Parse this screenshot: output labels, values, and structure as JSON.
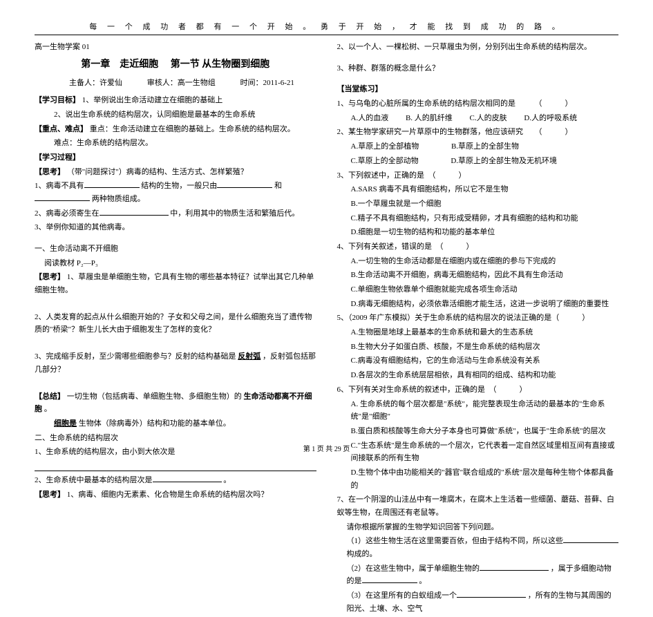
{
  "header_quote": "每 一 个 成 功 者 都 有 一 个 开 始 。 勇 于 开 始 ， 才 能 找 到 成 功 的 路 。",
  "doc_number": "高一生物学案 01",
  "chapter": "第一章　走近细胞　 第一节 从生物圈到细胞",
  "author_label": "主备人：许爱仙",
  "reviewer": "审核人：高一生物组",
  "date": "时间：2011-6-21",
  "goals_label": "【学习目标】",
  "goal1": "1、举例说出生命活动建立在细胞的基础上",
  "goal2": "2、说出生命系统的结构层次，认同细胞是最基本的生命系统",
  "difficulty_label": "【重点、难点】",
  "difficulty_key": "重点：生命活动建立在细胞的基础上。生命系统的结构层次。",
  "difficulty_hard": "难点：生命系统的结构层次。",
  "process_label": "【学习过程】",
  "think_label": "【思考】",
  "think_text": "（带\"问题探讨\"）病毒的结构、生活方式、怎样繁殖？",
  "q1_prefix": "1、病毒不具有",
  "q1_mid": "结构的生物，一般只由",
  "q1_mid2": "和",
  "q1_end": "两种物质组成。",
  "q2_prefix": "2、病毒必须寄生在",
  "q2_end": "中，利用其中的物质生活和繁殖后代。",
  "q3": "3、举例你知道的其他病毒。",
  "sec1_title": "一、生命活动离不开细胞",
  "sec1_read": "阅读教材 P₂—P₃",
  "think2_label": "【思考】",
  "think2_q1": "1、草履虫是单细胞生物，它具有生物的哪些基本特征？试举出其它几种单细胞生物。",
  "think2_q2": "2、人类发育的起点从什么细胞开始的？子女和父母之间，是什么细胞充当了遗传物质的\"桥梁\"？新生儿长大由于细胞发生了怎样的变化？",
  "think2_q3_pre": "3、完成缩手反射，至少需哪些细胞参与？反射的结构基础是",
  "think2_q3_bold": "反射弧",
  "think2_q3_post": "，反射弧包括那几部分？",
  "summary_label": "【总结】",
  "summary1_pre": "一切生物（包括病毒、单细胞生物、多细胞生物）的",
  "summary1_bold": "生命活动都离不开细胞",
  "summary1_post": "。",
  "summary2_pre": "细胞是",
  "summary2_post": "生物体（除病毒外）结构和功能的基本单位。",
  "sec2_title": "二、生命系统的结构层次",
  "sec2_q1": "1、生命系统的结构层次，由小到大依次是",
  "sec2_q2_pre": "2、生命系统中最基本的结构层次是",
  "sec2_q2_post": "。",
  "think3_label": "【思考】",
  "think3_q1": "1、病毒、细胞内无素素、化合物是生命系统的结构层次吗？",
  "right_q2": "2、以一个人、一棵松树、一只草履虫为例，分别列出生命系统的结构层次。",
  "right_q3": "3、种群、群落的概念是什么？",
  "practice_label": "【当堂练习】",
  "p1": "1、与乌龟的心脏所属的生命系统的结构层次相同的是　　　（　　　）",
  "p1a": "A.人的血液",
  "p1b": "B. 人的肌纤维",
  "p1c": "C.人的皮肤",
  "p1d": "D.人的呼吸系统",
  "p2": "2、某生物学家研究一片草原中的生物群落，他应该研究　　（　　　）",
  "p2a": "A.草原上的全部植物",
  "p2b": "B.草原上的全部生物",
  "p2c": "C.草原上的全部动物",
  "p2d": "D.草原上的全部生物及无机环境",
  "p3": "3、下列叙述中，正确的是　（　　　）",
  "p3a": "A.SARS 病毒不具有细胞结构，所以它不是生物",
  "p3b": "B.一个草履虫就是一个细胞",
  "p3c": "C.精子不具有细胞结构，只有形成受精卵，才具有细胞的结构和功能",
  "p3d": "D.细胞是一切生物的结构和功能的基本单位",
  "p4": "4、下列有关叙述，错误的是　（　　　）",
  "p4a": "A.一切生物的生命活动都是在细胞内或在细胞的参与下完成的",
  "p4b": "B.生命活动离不开细胞，病毒无细胞结构，因此不具有生命活动",
  "p4c": "C.单细胞生物依靠单个细胞就能完成各项生命活动",
  "p4d": "D.病毒无细胞结构，必须依靠活细胞才能生活，这进一步说明了细胞的重要性",
  "p5": "5、（2009 年广东模拟）关于生命系统的结构层次的说法正确的是（　　　）",
  "p5a": "A.生物圈是地球上最基本的生命系统和最大的生态系统",
  "p5b": "B.生物大分子如蛋白质、核酸，不是生命系统的结构层次",
  "p5c": "C.病毒没有细胞结构，它的生命活动与生命系统没有关系",
  "p5d": "D.各层次的生命系统层层相依，具有相同的组成、结构和功能",
  "p6": "6、下列有关对生命系统的叙述中，正确的是　（　　　）",
  "p6a": "A. 生命系统的每个层次都是\"系统\"，能完整表现生命活动的最基本的\"生命系统\"是\"细胞\"",
  "p6b": "B.蛋白质和核酸等生命大分子本身也可算做\"系统\"，也属于\"生命系统\"的层次",
  "p6c": "C.\"生态系统\"是生命系统的一个层次，它代表着一定自然区域里相互间有直接或间接联系的所有生物",
  "p6d": "D.生物个体中由功能相关的\"器官\"联合组成的\"系统\"层次是每种生物个体都具备的",
  "p7": "7、在一个阴湿的山洼丛中有一堆腐木，在腐木上生活着一些细菌、蘑菇、苔藓、白蚁等生物，在周围还有老鼠等。",
  "p7_sub": "请你根据所掌握的生物学知识回答下列问题。",
  "p7_1_pre": "（1）这些生物生活在这里需要百依，但由于结构不同，所以这些",
  "p7_1_post": "构成的。",
  "p7_2_pre": "（2）在这些生物中，属于单细胞生物的",
  "p7_2_mid": "，属于多细胞动物的是",
  "p7_2_post": "。",
  "p7_3_pre": "（3）在这里所有的白蚁组成一个",
  "p7_3_post": "，所有的生物与其周围的阳光、土壤、水、空气",
  "page_footer": "第 1 页 共 29 页"
}
